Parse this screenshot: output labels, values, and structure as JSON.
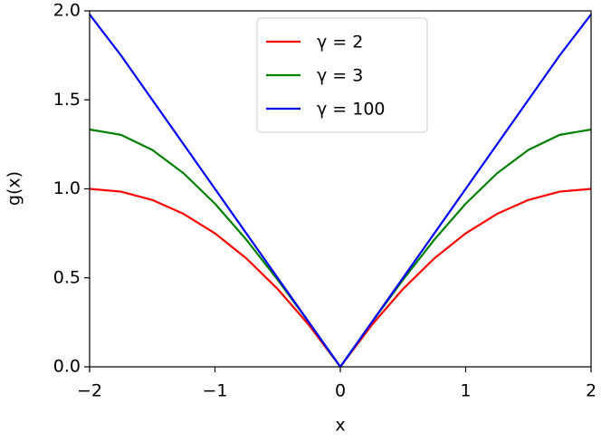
{
  "chart_data": {
    "type": "line",
    "xlabel": "x",
    "ylabel": "g(x)",
    "x": [
      -2,
      -1.75,
      -1.5,
      -1.25,
      -1,
      -0.75,
      -0.5,
      -0.25,
      0,
      0.25,
      0.5,
      0.75,
      1,
      1.25,
      1.5,
      1.75,
      2
    ],
    "series": [
      {
        "name": "γ = 2",
        "color": "#ff0000",
        "values": [
          1,
          0.9844,
          0.9375,
          0.8594,
          0.75,
          0.6094,
          0.4375,
          0.2344,
          0,
          0.2344,
          0.4375,
          0.6094,
          0.75,
          0.8594,
          0.9375,
          0.9844,
          1
        ]
      },
      {
        "name": "γ = 3",
        "color": "#008000",
        "values": [
          1.3333,
          1.3034,
          1.2188,
          1.0872,
          0.9167,
          0.7148,
          0.4896,
          0.2487,
          0,
          0.2487,
          0.4896,
          0.7148,
          0.9167,
          1.0872,
          1.2188,
          1.3034,
          1.3333
        ]
      },
      {
        "name": "γ = 100",
        "color": "#0000ff",
        "values": [
          1.98,
          1.75,
          1.5,
          1.25,
          1,
          0.75,
          0.5,
          0.25,
          0,
          0.25,
          0.5,
          0.75,
          1,
          1.25,
          1.5,
          1.75,
          1.98
        ]
      }
    ],
    "xlim": [
      -2,
      2
    ],
    "ylim": [
      0,
      2
    ],
    "xticks": [
      {
        "value": -2,
        "label": "−2"
      },
      {
        "value": -1,
        "label": "−1"
      },
      0,
      1,
      2
    ],
    "yticks": [
      {
        "value": 0,
        "label": "0.0"
      },
      {
        "value": 0.5,
        "label": "0.5"
      },
      {
        "value": 1,
        "label": "1.0"
      },
      {
        "value": 1.5,
        "label": "1.5"
      },
      {
        "value": 2,
        "label": "2.0"
      }
    ],
    "legend": "upper center"
  }
}
